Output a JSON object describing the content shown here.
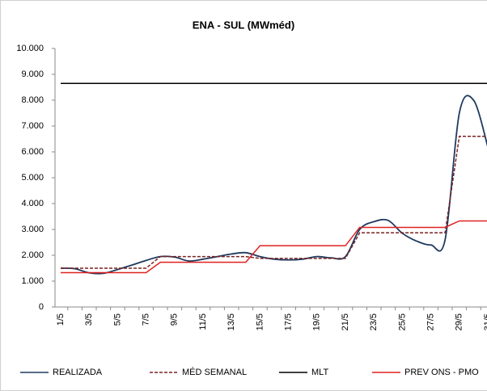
{
  "chart_data": {
    "type": "line",
    "title": "ENA - SUL (MWméd)",
    "categories": [
      "1/5",
      null,
      "3/5",
      null,
      "5/5",
      null,
      "7/5",
      null,
      "9/5",
      null,
      "11/5",
      null,
      "13/5",
      null,
      "15/5",
      null,
      "17/5",
      null,
      "19/5",
      null,
      "21/5",
      null,
      "23/5",
      null,
      "25/5",
      null,
      "27/5",
      null,
      "29/5",
      null,
      "31/5"
    ],
    "ylim": [
      0,
      10000
    ],
    "yticks": [
      0,
      {
        "value": 1000,
        "label": "1.000"
      },
      {
        "value": 2000,
        "label": "2.000"
      },
      {
        "value": 3000,
        "label": "3.000"
      },
      {
        "value": 4000,
        "label": "4.000"
      },
      {
        "value": 5000,
        "label": "5.000"
      },
      {
        "value": 6000,
        "label": "6.000"
      },
      {
        "value": 7000,
        "label": "7.000"
      },
      {
        "value": 8000,
        "label": "8.000"
      },
      {
        "value": 9000,
        "label": "9.000"
      },
      {
        "value": 10000,
        "label": "10.000"
      }
    ],
    "grid": false,
    "legend": "bottom",
    "series": [
      {
        "name": "REALIZADA",
        "color": "#1f3a5f",
        "smooth": true,
        "values": [
          1500,
          1480,
          1320,
          1300,
          1450,
          1620,
          1800,
          1950,
          1930,
          1780,
          1850,
          1950,
          2050,
          2100,
          1950,
          1850,
          1820,
          1850,
          1950,
          1900,
          1950,
          3000,
          3300,
          3350,
          2850,
          2550,
          2400,
          2600,
          7500,
          8000,
          6200
        ]
      },
      {
        "name": "MÉD SEMANAL",
        "color": "#7b2020",
        "dashed": true,
        "values": [
          1500,
          1500,
          1500,
          1500,
          1500,
          1500,
          1500,
          1950,
          1950,
          1950,
          1950,
          1950,
          1950,
          1950,
          1880,
          1880,
          1880,
          1880,
          1880,
          1880,
          1880,
          2870,
          2870,
          2870,
          2870,
          2870,
          2870,
          2870,
          6600,
          6600,
          6600
        ]
      },
      {
        "name": "MLT",
        "color": "#000000",
        "values": [
          8650,
          8650,
          8650,
          8650,
          8650,
          8650,
          8650,
          8650,
          8650,
          8650,
          8650,
          8650,
          8650,
          8650,
          8650,
          8650,
          8650,
          8650,
          8650,
          8650,
          8650,
          8650,
          8650,
          8650,
          8650,
          8650,
          8650,
          8650,
          8650,
          8650,
          8650
        ]
      },
      {
        "name": "PREV ONS - PMO",
        "color": "#e02020",
        "values": [
          1330,
          1330,
          1330,
          1330,
          1330,
          1330,
          1330,
          1730,
          1730,
          1730,
          1730,
          1730,
          1730,
          1730,
          2370,
          2370,
          2370,
          2370,
          2370,
          2370,
          2370,
          3080,
          3080,
          3080,
          3080,
          3080,
          3080,
          3080,
          3330,
          3330,
          3330
        ]
      }
    ]
  }
}
